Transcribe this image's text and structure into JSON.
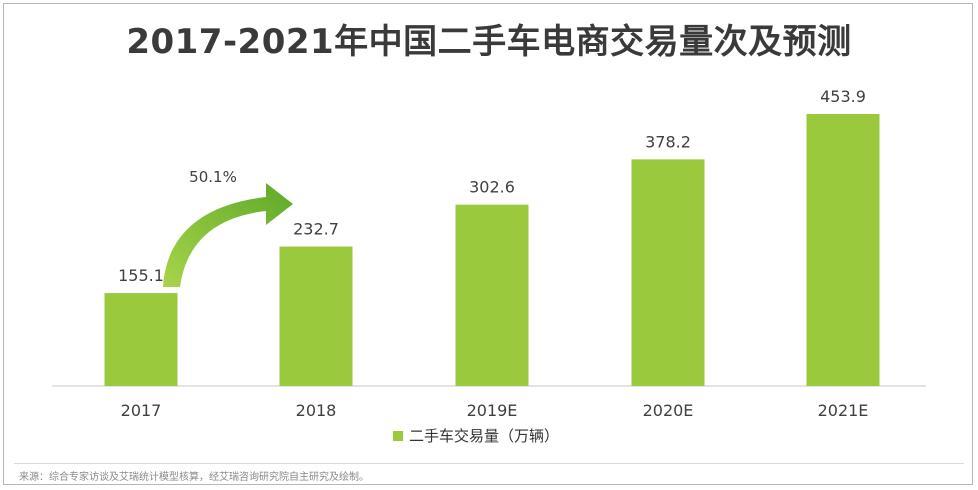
{
  "title": "2017-2021年中国二手车电商交易量次及预测",
  "chart_data": {
    "type": "bar",
    "categories": [
      "2017",
      "2018",
      "2019E",
      "2020E",
      "2021E"
    ],
    "series": [
      {
        "name": "二手车交易量（万辆）",
        "values": [
          155.1,
          232.7,
          302.6,
          378.2,
          453.9
        ]
      }
    ],
    "data_labels": [
      "155.1",
      "232.7",
      "302.6",
      "378.2",
      "453.9"
    ],
    "annotation": {
      "text": "50.1%",
      "from": "2017",
      "to": "2018"
    },
    "ylim": [
      0,
      475
    ],
    "grid": false,
    "legend_position": "bottom",
    "colors": {
      "bar": "#9ac93e",
      "arrow": "#73b52f"
    }
  },
  "legend": {
    "label": "二手车交易量（万辆）"
  },
  "source": "来源：综合专家访谈及艾瑞统计模型核算，经艾瑞咨询研究院自主研究及绘制。"
}
